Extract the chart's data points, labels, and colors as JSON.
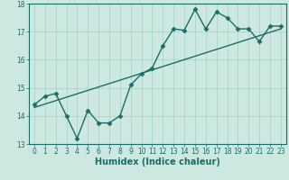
{
  "title": "",
  "xlabel": "Humidex (Indice chaleur)",
  "background_color": "#cce8e0",
  "line_color": "#1a6e68",
  "grid_color": "#a8d0c8",
  "spine_color": "#1a6e68",
  "xlim": [
    -0.5,
    23.5
  ],
  "ylim": [
    13,
    18
  ],
  "yticks": [
    13,
    14,
    15,
    16,
    17,
    18
  ],
  "xticks": [
    0,
    1,
    2,
    3,
    4,
    5,
    6,
    7,
    8,
    9,
    10,
    11,
    12,
    13,
    14,
    15,
    16,
    17,
    18,
    19,
    20,
    21,
    22,
    23
  ],
  "data_x": [
    0,
    1,
    2,
    3,
    4,
    5,
    6,
    7,
    8,
    9,
    10,
    11,
    12,
    13,
    14,
    15,
    16,
    17,
    18,
    19,
    20,
    21,
    22,
    23
  ],
  "data_y": [
    14.4,
    14.7,
    14.8,
    14.0,
    13.2,
    14.2,
    13.75,
    13.75,
    14.0,
    15.1,
    15.5,
    15.7,
    16.5,
    17.1,
    17.05,
    17.8,
    17.1,
    17.7,
    17.5,
    17.1,
    17.1,
    16.65,
    17.2,
    17.2
  ],
  "trend_x": [
    0,
    23
  ],
  "trend_y": [
    14.3,
    17.1
  ],
  "marker": "D",
  "marker_size": 2.5,
  "line_width": 1.0,
  "tick_fontsize": 5.5,
  "label_fontsize": 7.0,
  "label_fontweight": "bold"
}
